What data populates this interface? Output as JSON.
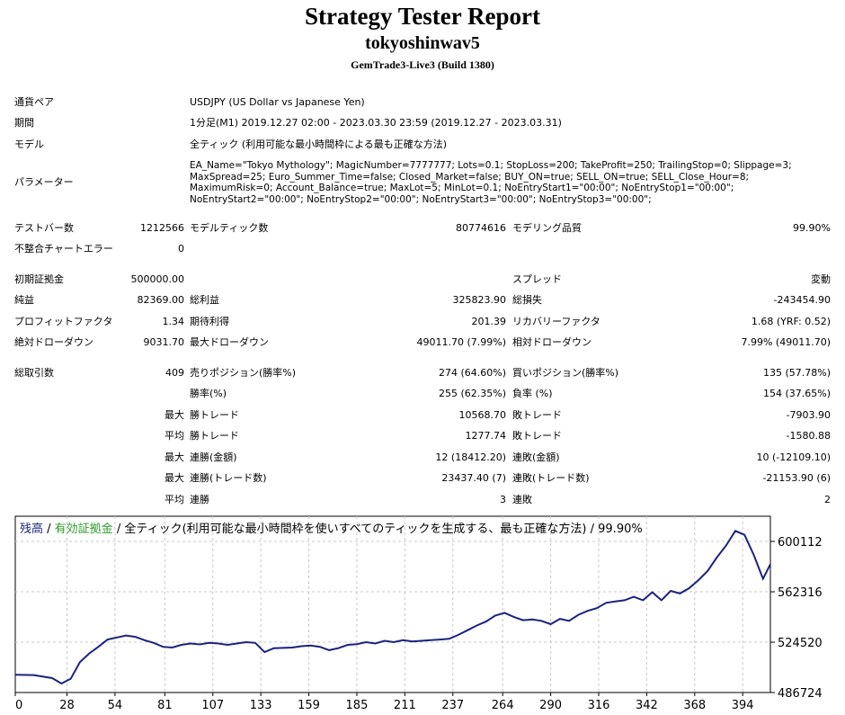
{
  "header": {
    "title": "Strategy Tester Report",
    "ea_name": "tokyoshinwav5",
    "build": "GemTrade3-Live3 (Build 1380)"
  },
  "info": {
    "symbol_label": "通貨ペア",
    "symbol_value": "USDJPY (US Dollar vs Japanese Yen)",
    "period_label": "期間",
    "period_value": "1分足(M1) 2019.12.27 02:00 - 2023.03.30 23:59 (2019.12.27 - 2023.03.31)",
    "model_label": "モデル",
    "model_value": "全ティック (利用可能な最小時間枠による最も正確な方法)",
    "params_label": "パラメーター",
    "params_value": "EA_Name=\"Tokyo Mythology\"; MagicNumber=7777777; Lots=0.1; StopLoss=200; TakeProfit=250; TrailingStop=0; Slippage=3; MaxSpread=25; Euro_Summer_Time=false; Closed_Market=false; BUY_ON=true; SELL_ON=true; SELL_Close_Hour=8; MaximumRisk=0; Account_Balance=true; MaxLot=5; MinLot=0.1; NoEntryStart1=\"00:00\"; NoEntryStop1=\"00:00\"; NoEntryStart2=\"00:00\"; NoEntryStop2=\"00:00\"; NoEntryStart3=\"00:00\"; NoEntryStop3=\"00:00\";"
  },
  "stats": {
    "bars_label": "テストバー数",
    "bars_value": "1212566",
    "ticks_label": "モデルティック数",
    "ticks_value": "80774616",
    "quality_label": "モデリング品質",
    "quality_value": "99.90%",
    "errors_label": "不整合チャートエラー",
    "errors_value": "0",
    "deposit_label": "初期証拠金",
    "deposit_value": "500000.00",
    "spread_label": "スプレッド",
    "spread_value": "変動",
    "net_label": "純益",
    "net_value": "82369.00",
    "gross_profit_label": "総利益",
    "gross_profit_value": "325823.90",
    "gross_loss_label": "総損失",
    "gross_loss_value": "-243454.90",
    "pf_label": "プロフィットファクタ",
    "pf_value": "1.34",
    "payoff_label": "期待利得",
    "payoff_value": "201.39",
    "recovery_label": "リカバリーファクタ",
    "recovery_value": "1.68 (YRF: 0.52)",
    "abs_dd_label": "絶対ドローダウン",
    "abs_dd_value": "9031.70",
    "max_dd_label": "最大ドローダウン",
    "max_dd_value": "49011.70 (7.99%)",
    "rel_dd_label": "相対ドローダウン",
    "rel_dd_value": "7.99% (49011.70)",
    "trades_label": "総取引数",
    "trades_value": "409",
    "short_label": "売りポジション(勝率%)",
    "short_value": "274 (64.60%)",
    "long_label": "買いポジション(勝率%)",
    "long_value": "135 (57.78%)",
    "win_label": "勝率(%)",
    "win_value": "255 (62.35%)",
    "loss_label": "負率 (%)",
    "loss_value": "154 (37.65%)",
    "max_word": "最大",
    "avg_word": "平均",
    "win_trade_label": "勝トレード",
    "loss_trade_label": "敗トレード",
    "largest_win_value": "10568.70",
    "largest_loss_value": "-7903.90",
    "avg_win_value": "1277.74",
    "avg_loss_value": "-1580.88",
    "consec_wins_label": "連勝(金額)",
    "consec_wins_value": "12 (18412.20)",
    "consec_losses_label": "連敗(金額)",
    "consec_losses_value": "10 (-12109.10)",
    "consec_profit_label": "連勝(トレード数)",
    "consec_profit_value": "23437.40 (7)",
    "consec_loss_label": "連敗(トレード数)",
    "consec_loss_value": "-21153.90 (6)",
    "avg_consec_win_label": "連勝",
    "avg_consec_win_value": "3",
    "avg_consec_loss_label": "連敗",
    "avg_consec_loss_value": "2"
  },
  "chart_data": {
    "type": "line",
    "legend_balance": "残高",
    "legend_sep1": " / ",
    "legend_equity": "有効証拠金",
    "legend_sep2": " / ",
    "legend_rest": "全ティック(利用可能な最小時間枠を使いすべてのティックを生成する、最も正確な方法) / 99.90%",
    "line_color": "#1a237e",
    "equity_color": "#2e9a2e",
    "ylim": [
      486724,
      619000
    ],
    "xlim": [
      0,
      409
    ],
    "y_ticks": [
      600112,
      562316,
      524520,
      486724
    ],
    "x_ticks": [
      0,
      28,
      54,
      81,
      107,
      133,
      159,
      185,
      211,
      237,
      264,
      290,
      316,
      342,
      368,
      394
    ],
    "grid": true,
    "x": [
      0,
      10,
      20,
      25,
      30,
      35,
      40,
      45,
      50,
      55,
      60,
      65,
      70,
      75,
      80,
      85,
      90,
      95,
      100,
      105,
      110,
      115,
      120,
      125,
      130,
      135,
      140,
      145,
      150,
      155,
      160,
      165,
      170,
      175,
      180,
      185,
      190,
      195,
      200,
      205,
      210,
      215,
      220,
      225,
      230,
      235,
      240,
      245,
      250,
      255,
      260,
      265,
      270,
      275,
      280,
      285,
      290,
      295,
      300,
      305,
      310,
      315,
      320,
      325,
      330,
      335,
      340,
      345,
      350,
      355,
      360,
      365,
      370,
      375,
      380,
      385,
      390,
      395,
      400,
      405,
      409
    ],
    "y": [
      500000,
      499800,
      497500,
      493500,
      497000,
      509500,
      516000,
      521000,
      526500,
      528000,
      529500,
      528500,
      526000,
      524000,
      521000,
      520500,
      522500,
      523500,
      522800,
      524000,
      523500,
      522500,
      523500,
      524500,
      524000,
      517000,
      520000,
      520200,
      520500,
      521500,
      522000,
      521000,
      518500,
      520000,
      522500,
      523000,
      524500,
      523500,
      525500,
      524500,
      526000,
      525000,
      525500,
      526000,
      526500,
      527000,
      530000,
      533500,
      537000,
      540000,
      544500,
      546500,
      543500,
      541000,
      541500,
      540500,
      538000,
      542000,
      540500,
      545000,
      548000,
      550000,
      554000,
      555000,
      556000,
      558500,
      556000,
      562000,
      556000,
      563000,
      561000,
      565000,
      571000,
      578000,
      588000,
      597000,
      608000,
      605000,
      590000,
      572000,
      583000
    ]
  }
}
